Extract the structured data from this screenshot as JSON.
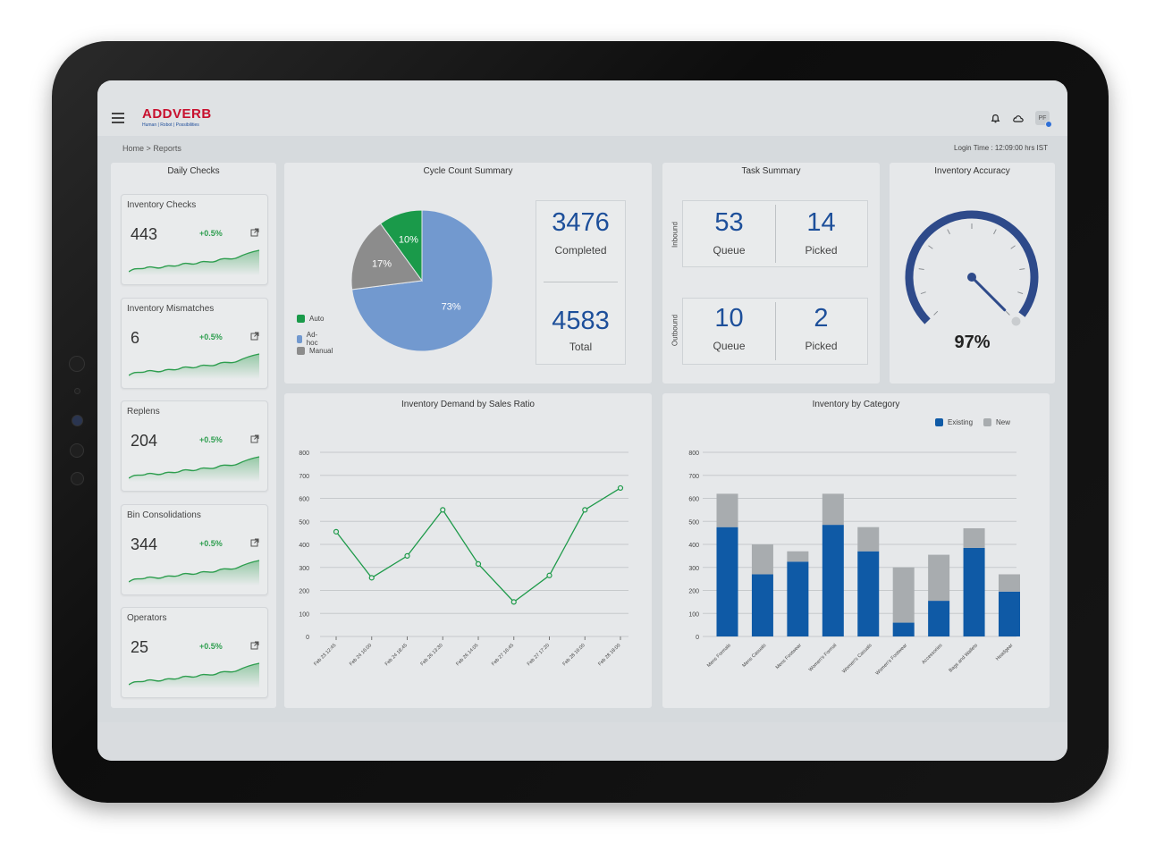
{
  "header": {
    "brand": "ADDVERB",
    "tagline": "Human | Robot | Possibilities",
    "avatar_initials": "PF"
  },
  "breadcrumb": {
    "home": "Home",
    "separator": ">",
    "current": "Reports"
  },
  "login_time": "Login Time : 12:09:00 hrs IST",
  "daily_checks": {
    "title": "Daily Checks",
    "cards": [
      {
        "title": "Inventory Checks",
        "value": "443",
        "delta": "+0.5%"
      },
      {
        "title": "Inventory Mismatches",
        "value": "6",
        "delta": "+0.5%"
      },
      {
        "title": "Replens",
        "value": "204",
        "delta": "+0.5%"
      },
      {
        "title": "Bin Consolidations",
        "value": "344",
        "delta": "+0.5%"
      },
      {
        "title": "Operators",
        "value": "25",
        "delta": "+0.5%"
      }
    ]
  },
  "cycle_count": {
    "title": "Cycle Count Summary",
    "completed_value": "3476",
    "completed_label": "Completed",
    "total_value": "4583",
    "total_label": "Total",
    "chart_data": {
      "type": "pie",
      "slices": [
        {
          "label": "Auto",
          "value": 10,
          "display": "10%",
          "color": "#1a9a4a"
        },
        {
          "label": "Ad-hoc",
          "value": 73,
          "display": "73%",
          "color": "#7299cf"
        },
        {
          "label": "Manual",
          "value": 17,
          "display": "17%",
          "color": "#8c8c8c"
        }
      ]
    }
  },
  "task_summary": {
    "title": "Task  Summary",
    "inbound_label": "Inbound",
    "outbound_label": "Outbound",
    "inbound_queue": "53",
    "inbound_picked": "14",
    "outbound_queue": "10",
    "outbound_picked": "2",
    "queue_label": "Queue",
    "picked_label": "Picked"
  },
  "inventory_accuracy": {
    "title": "Inventory Accuracy",
    "value_text": "97%",
    "value": 97,
    "color": "#2e4a8a"
  },
  "demand_chart": {
    "title": "Inventory Demand by Sales Ratio",
    "chart_data": {
      "type": "line",
      "x": [
        "Feb 23 12:45",
        "Feb 24 16:00",
        "Feb 24 18:45",
        "Feb 26 13:30",
        "Feb 26 14:05",
        "Feb 27 16:45",
        "Feb 27 17:20",
        "Feb 28 16:00",
        "Feb 28 18:00"
      ],
      "series": [
        {
          "values": [
            455,
            255,
            350,
            550,
            315,
            150,
            265,
            550,
            645
          ],
          "color": "#1e9a4a"
        }
      ],
      "ylim": [
        0,
        800
      ],
      "yticks": [
        0,
        100,
        200,
        300,
        400,
        500,
        600,
        700,
        800
      ],
      "grid": true
    }
  },
  "category_chart": {
    "title": "Inventory by Category",
    "chart_data": {
      "type": "bar",
      "stacked": true,
      "categories": [
        "Mens Formals",
        "Mens Casuals",
        "Mens Footwear",
        "Women's Formal",
        "Women's Casuals",
        "Women's Footwear",
        "Accessories",
        "Bags and Wallets",
        "Headgear"
      ],
      "series": [
        {
          "name": "Existing",
          "values": [
            475,
            270,
            325,
            485,
            370,
            60,
            155,
            385,
            195
          ],
          "color": "#0f5aa6"
        },
        {
          "name": "New",
          "values": [
            145,
            130,
            45,
            135,
            105,
            240,
            200,
            85,
            75
          ],
          "color": "#a8acaf"
        }
      ],
      "ylim": [
        0,
        800
      ],
      "yticks": [
        0,
        100,
        200,
        300,
        400,
        500,
        600,
        700,
        800
      ],
      "legend": "top-right",
      "grid": true
    }
  }
}
